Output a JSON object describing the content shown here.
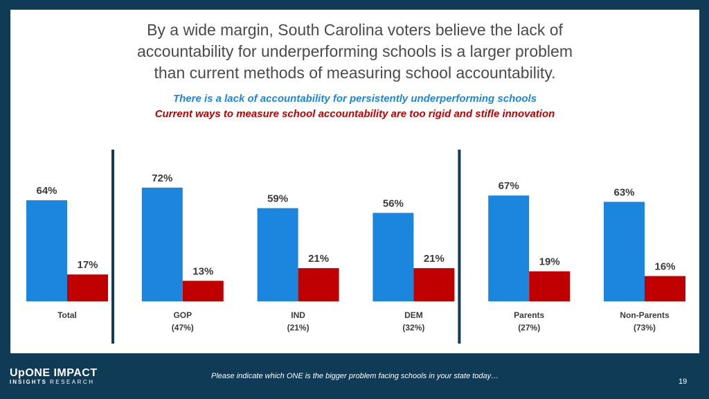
{
  "title_lines": [
    "By a wide margin, South Carolina voters believe the lack of",
    "accountability for underperforming schools is a larger problem",
    "than current methods of measuring school accountability."
  ],
  "colors": {
    "blue": "#1c86de",
    "red": "#c00000",
    "background": "#0f3b57",
    "divider": "#0f3b57"
  },
  "chart_data": {
    "type": "bar",
    "categories": [
      "Total",
      "GOP",
      "IND",
      "DEM",
      "Parents",
      "Non-Parents"
    ],
    "category_sublabels": [
      "",
      "(47%)",
      "(21%)",
      "(32%)",
      "(27%)",
      "(73%)"
    ],
    "series": [
      {
        "name": "There is a lack of accountability for persistently underperforming schools",
        "values": [
          64,
          72,
          59,
          56,
          67,
          63
        ],
        "labels": [
          "64%",
          "72%",
          "59%",
          "56%",
          "67%",
          "63%"
        ],
        "color": "#1c86de"
      },
      {
        "name": "Current ways to measure school accountability are too rigid and stifle innovation",
        "values": [
          17,
          13,
          21,
          21,
          19,
          16
        ],
        "labels": [
          "17%",
          "13%",
          "21%",
          "21%",
          "19%",
          "16%"
        ],
        "color": "#c00000"
      }
    ],
    "group_dividers_after": [
      "Total",
      "DEM"
    ],
    "legend_position": "top-center",
    "grid": false
  },
  "footer": {
    "question": "Please indicate which ONE is the bigger problem facing schools in your state today…",
    "page_number": "19",
    "logo": {
      "main": "UpONE IMPACT",
      "sub_left": "INSIGHTS",
      "sub_right": "RESEARCH"
    }
  }
}
